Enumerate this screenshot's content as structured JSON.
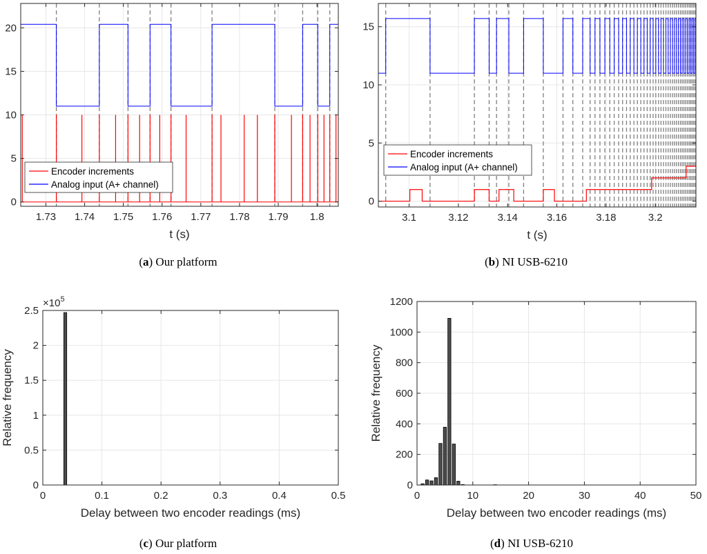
{
  "chart_data": [
    {
      "id": "a",
      "type": "line",
      "caption_letter": "a",
      "caption_text": "Our platform",
      "xlabel": "t (s)",
      "ylabel": "",
      "xlim": [
        1.7235,
        1.8055
      ],
      "ylim": [
        -0.5,
        22.8
      ],
      "xticks": [
        1.73,
        1.74,
        1.75,
        1.76,
        1.77,
        1.78,
        1.79,
        1.8
      ],
      "xtick_labels": [
        "1.73",
        "1.74",
        "1.75",
        "1.76",
        "1.77",
        "1.78",
        "1.79",
        "1.8"
      ],
      "yticks": [
        0,
        5,
        10,
        15,
        20
      ],
      "ytick_labels": [
        "0",
        "5",
        "10",
        "15",
        "20"
      ],
      "legend": [
        "Encoder increments",
        "Analog input (A+ channel)"
      ],
      "analog_high": 20.4,
      "analog_low": 11.0,
      "analog_start": 1.7235,
      "analog_end": 1.8055,
      "analog_initial_state": "high",
      "edges": [
        1.7327,
        1.7438,
        1.7512,
        1.7569,
        1.7623,
        1.7729,
        1.7891,
        1.7963,
        1.8002,
        1.8033
      ],
      "encoder_spikes": [
        1.7239,
        1.7327,
        1.7393,
        1.7438,
        1.748,
        1.7512,
        1.7542,
        1.7569,
        1.7594,
        1.7623,
        1.7662,
        1.7729,
        1.7752,
        1.7812,
        1.7846,
        1.7891,
        1.7934,
        1.7963,
        1.7982,
        1.8002,
        1.8018,
        1.8033,
        1.8049
      ],
      "encoder_spike_height": 10
    },
    {
      "id": "b",
      "type": "line",
      "caption_letter": "b",
      "caption_text": "NI USB-6210",
      "xlabel": "t (s)",
      "ylabel": "",
      "xlim": [
        3.0875,
        3.2165
      ],
      "ylim": [
        -0.5,
        17.0
      ],
      "xticks": [
        3.1,
        3.12,
        3.14,
        3.16,
        3.18,
        3.2
      ],
      "xtick_labels": [
        "3.1",
        "3.12",
        "3.14",
        "3.16",
        "3.18",
        "3.2"
      ],
      "yticks": [
        0,
        5,
        10,
        15
      ],
      "ytick_labels": [
        "0",
        "5",
        "10",
        "15"
      ],
      "legend": [
        "Encoder increments",
        "Analog input (A+ channel)"
      ],
      "analog_high": 15.7,
      "analog_low": 11.0,
      "analog_start": 3.0875,
      "analog_end": 3.2165,
      "analog_initial_state": "low",
      "edges": [
        3.0905,
        3.1085,
        3.1265,
        3.1325,
        3.1355,
        3.1405,
        3.1465,
        3.1545,
        3.1625,
        3.1665,
        3.1705,
        3.1735,
        3.1755,
        3.1775,
        3.1795,
        3.1815,
        3.1833,
        3.1851,
        3.1867,
        3.1883,
        3.1898,
        3.1913,
        3.1927,
        3.1941,
        3.1954,
        3.1967,
        3.1979,
        3.1991,
        3.2002,
        3.2013,
        3.2023,
        3.2033,
        3.2043,
        3.2052,
        3.2061,
        3.207,
        3.2078,
        3.2086,
        3.2094,
        3.2102,
        3.2109,
        3.2116,
        3.2123,
        3.213,
        3.2137,
        3.2143,
        3.2149,
        3.2155,
        3.2161
      ],
      "encoder_steps": [
        [
          3.0875,
          0
        ],
        [
          3.1003,
          1
        ],
        [
          3.1053,
          0
        ],
        [
          3.1265,
          1
        ],
        [
          3.1325,
          0
        ],
        [
          3.1365,
          1
        ],
        [
          3.1425,
          0
        ],
        [
          3.1545,
          1
        ],
        [
          3.159,
          0
        ],
        [
          3.172,
          1
        ],
        [
          3.1985,
          2
        ],
        [
          3.2125,
          3
        ],
        [
          3.2165,
          3
        ]
      ]
    },
    {
      "id": "c",
      "type": "bar",
      "caption_letter": "c",
      "caption_text": "Our platform",
      "xlabel": "Delay between two encoder readings (ms)",
      "ylabel": "Relative frequency",
      "xlim": [
        0,
        0.5
      ],
      "ylim": [
        0,
        250000
      ],
      "xticks": [
        0,
        0.1,
        0.2,
        0.3,
        0.4,
        0.5
      ],
      "xtick_labels": [
        "0",
        "0.1",
        "0.2",
        "0.3",
        "0.4",
        "0.5"
      ],
      "yticks": [
        0,
        50000,
        100000,
        150000,
        200000,
        250000
      ],
      "ytick_labels": [
        "0",
        "0.5",
        "1",
        "1.5",
        "2",
        "2.5"
      ],
      "exponent_label": "×10",
      "exponent_power": "5",
      "bar_width": 0.005,
      "bars": [
        {
          "x": 0.038,
          "value": 247000
        }
      ]
    },
    {
      "id": "d",
      "type": "bar",
      "caption_letter": "d",
      "caption_text": "NI USB-6210",
      "xlabel": "Delay between two encoder readings (ms)",
      "ylabel": "Relative frequency",
      "xlim": [
        0,
        50
      ],
      "ylim": [
        0,
        1200
      ],
      "xticks": [
        0,
        10,
        20,
        30,
        40,
        50
      ],
      "xtick_labels": [
        "0",
        "10",
        "20",
        "30",
        "40",
        "50"
      ],
      "yticks": [
        0,
        200,
        400,
        600,
        800,
        1000,
        1200
      ],
      "ytick_labels": [
        "0",
        "200",
        "400",
        "600",
        "800",
        "1000",
        "1200"
      ],
      "bar_width": 0.55,
      "bars": [
        {
          "x": 1.0,
          "value": 8
        },
        {
          "x": 1.8,
          "value": 33
        },
        {
          "x": 2.6,
          "value": 27
        },
        {
          "x": 3.4,
          "value": 48
        },
        {
          "x": 4.2,
          "value": 272
        },
        {
          "x": 5.0,
          "value": 378
        },
        {
          "x": 5.8,
          "value": 1090
        },
        {
          "x": 6.6,
          "value": 268
        },
        {
          "x": 7.4,
          "value": 25
        },
        {
          "x": 8.2,
          "value": 3
        },
        {
          "x": 14.0,
          "value": 2
        }
      ]
    }
  ],
  "colors": {
    "encoder": "#ff0000",
    "analog": "#0000ff",
    "dashed": "#7f7f7f",
    "bar_fill": "#4d4d4d",
    "grid": "#e6e6e6",
    "axis": "#262626"
  }
}
